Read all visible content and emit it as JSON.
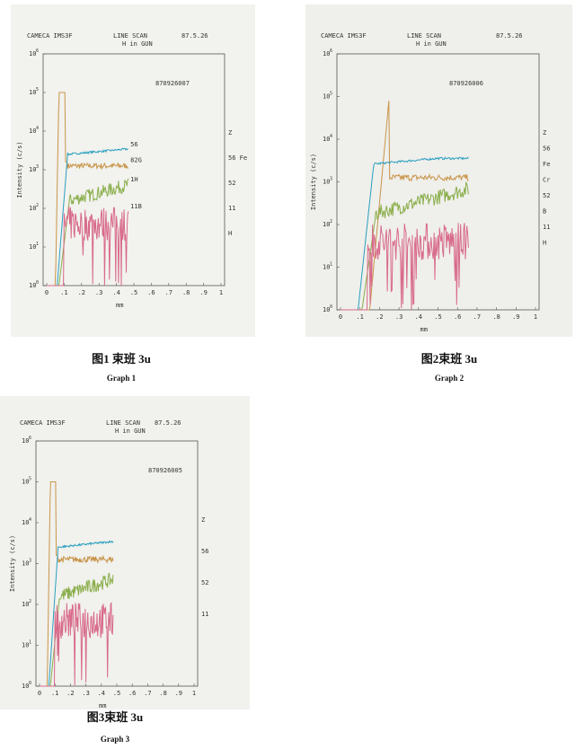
{
  "graphs": [
    {
      "header": {
        "maker": "CAMECA IMS3F",
        "mode": "LINE SCAN",
        "date": "87.5.26",
        "subtitle": "H in GUN"
      },
      "sample": "870926007",
      "y_label": "Intensity (c/s)",
      "x_label": "mm",
      "y_tick_base": "10",
      "y_ticks": [
        "0",
        "1",
        "2",
        "3",
        "4",
        "5",
        "6"
      ],
      "x_ticks": [
        "0",
        ".1",
        ".2",
        ".3",
        ".4",
        ".5",
        ".6",
        ".7",
        ".8",
        ".9",
        "1"
      ],
      "curve_labels": [
        "56",
        "82G",
        "1H",
        "11B"
      ],
      "side_labels": [
        "Z",
        "56 Fe",
        "52",
        "11",
        "H"
      ],
      "caption_cn": "图1 束班 3u",
      "caption_en": "Graph 1"
    },
    {
      "header": {
        "maker": "CAMECA IMS3F",
        "mode": "LINE SCAN",
        "date": "87.5.26",
        "subtitle": "H in GUN"
      },
      "sample": "870926006",
      "y_label": "Intensity (c/s)",
      "x_label": "mm",
      "y_tick_base": "10",
      "y_ticks": [
        "0",
        "1",
        "2",
        "3",
        "4",
        "5",
        "6"
      ],
      "x_ticks": [
        "0",
        ".1",
        ".2",
        ".3",
        ".4",
        ".5",
        ".6",
        ".7",
        ".8",
        ".9",
        "1"
      ],
      "curve_labels": [],
      "side_labels": [
        "Z",
        "56",
        "Fe",
        "Cr",
        "52",
        "B",
        "11",
        "H"
      ],
      "caption_cn": "图2束班 3u",
      "caption_en": "Graph 2"
    },
    {
      "header": {
        "maker": "CAMECA IMS3F",
        "mode": "LINE SCAN",
        "date": "87.5.26",
        "subtitle": "H in GUN"
      },
      "sample": "870926005",
      "y_label": "Intensity (c/s)",
      "x_label": "mm",
      "y_tick_base": "10",
      "y_ticks": [
        "0",
        "1",
        "2",
        "3",
        "4",
        "5",
        "6"
      ],
      "x_ticks": [
        "0",
        ".1",
        ".2",
        ".3",
        ".4",
        ".5",
        ".6",
        ".7",
        ".8",
        ".9",
        "1"
      ],
      "curve_labels": [],
      "side_labels": [
        "Z",
        "56",
        "52",
        "11"
      ],
      "caption_cn": "图3束班 3u",
      "caption_en": "Graph 3"
    }
  ]
}
